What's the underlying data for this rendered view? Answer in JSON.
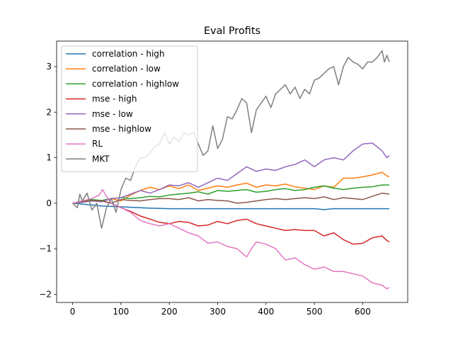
{
  "chart_data": {
    "type": "line",
    "title": "Eval Profits",
    "xlabel": "",
    "ylabel": "",
    "xlim": [
      -33,
      693
    ],
    "ylim": [
      -2.18,
      3.56
    ],
    "xticks": [
      0,
      100,
      200,
      300,
      400,
      500,
      600
    ],
    "yticks": [
      -2,
      -1,
      0,
      1,
      2,
      3
    ],
    "grid": false,
    "legend_position": "upper-left",
    "series": [
      {
        "name": "correlation - high",
        "color": "#1f77b4",
        "points": [
          [
            0,
            0
          ],
          [
            20,
            -0.02
          ],
          [
            40,
            -0.04
          ],
          [
            60,
            -0.06
          ],
          [
            80,
            -0.07
          ],
          [
            100,
            -0.08
          ],
          [
            120,
            -0.09
          ],
          [
            140,
            -0.1
          ],
          [
            160,
            -0.11
          ],
          [
            200,
            -0.12
          ],
          [
            250,
            -0.12
          ],
          [
            300,
            -0.12
          ],
          [
            350,
            -0.12
          ],
          [
            400,
            -0.12
          ],
          [
            450,
            -0.12
          ],
          [
            500,
            -0.12
          ],
          [
            520,
            -0.14
          ],
          [
            540,
            -0.12
          ],
          [
            580,
            -0.12
          ],
          [
            620,
            -0.12
          ],
          [
            655,
            -0.12
          ]
        ]
      },
      {
        "name": "correlation - low",
        "color": "#ff7f0e",
        "points": [
          [
            0,
            0
          ],
          [
            20,
            0.03
          ],
          [
            40,
            0.05
          ],
          [
            60,
            0.04
          ],
          [
            80,
            0.1
          ],
          [
            100,
            0.05
          ],
          [
            120,
            0.18
          ],
          [
            140,
            0.28
          ],
          [
            160,
            0.35
          ],
          [
            180,
            0.3
          ],
          [
            200,
            0.38
          ],
          [
            220,
            0.32
          ],
          [
            240,
            0.4
          ],
          [
            260,
            0.28
          ],
          [
            280,
            0.33
          ],
          [
            300,
            0.38
          ],
          [
            320,
            0.35
          ],
          [
            340,
            0.4
          ],
          [
            360,
            0.44
          ],
          [
            380,
            0.35
          ],
          [
            400,
            0.4
          ],
          [
            420,
            0.38
          ],
          [
            440,
            0.42
          ],
          [
            460,
            0.36
          ],
          [
            480,
            0.33
          ],
          [
            500,
            0.3
          ],
          [
            520,
            0.38
          ],
          [
            540,
            0.35
          ],
          [
            560,
            0.55
          ],
          [
            580,
            0.55
          ],
          [
            600,
            0.58
          ],
          [
            620,
            0.62
          ],
          [
            640,
            0.68
          ],
          [
            650,
            0.6
          ],
          [
            655,
            0.58
          ]
        ]
      },
      {
        "name": "correlation - highlow",
        "color": "#2ca02c",
        "points": [
          [
            0,
            0
          ],
          [
            20,
            0.04
          ],
          [
            40,
            0.08
          ],
          [
            60,
            0.06
          ],
          [
            80,
            0.1
          ],
          [
            100,
            0.12
          ],
          [
            120,
            0.1
          ],
          [
            140,
            0.12
          ],
          [
            160,
            0.15
          ],
          [
            180,
            0.14
          ],
          [
            200,
            0.18
          ],
          [
            220,
            0.2
          ],
          [
            240,
            0.22
          ],
          [
            260,
            0.25
          ],
          [
            280,
            0.2
          ],
          [
            300,
            0.28
          ],
          [
            320,
            0.26
          ],
          [
            340,
            0.28
          ],
          [
            360,
            0.3
          ],
          [
            380,
            0.24
          ],
          [
            400,
            0.26
          ],
          [
            420,
            0.3
          ],
          [
            440,
            0.32
          ],
          [
            460,
            0.28
          ],
          [
            480,
            0.3
          ],
          [
            500,
            0.35
          ],
          [
            520,
            0.38
          ],
          [
            540,
            0.33
          ],
          [
            560,
            0.3
          ],
          [
            580,
            0.33
          ],
          [
            600,
            0.35
          ],
          [
            620,
            0.36
          ],
          [
            640,
            0.4
          ],
          [
            655,
            0.4
          ]
        ]
      },
      {
        "name": "mse - high",
        "color": "#d62728",
        "points": [
          [
            0,
            0
          ],
          [
            20,
            0.03
          ],
          [
            40,
            0.05
          ],
          [
            60,
            0.05
          ],
          [
            80,
            0.0
          ],
          [
            100,
            -0.1
          ],
          [
            120,
            -0.18
          ],
          [
            140,
            -0.28
          ],
          [
            160,
            -0.35
          ],
          [
            180,
            -0.42
          ],
          [
            200,
            -0.45
          ],
          [
            220,
            -0.4
          ],
          [
            240,
            -0.42
          ],
          [
            260,
            -0.5
          ],
          [
            280,
            -0.48
          ],
          [
            300,
            -0.4
          ],
          [
            320,
            -0.45
          ],
          [
            340,
            -0.38
          ],
          [
            360,
            -0.35
          ],
          [
            380,
            -0.45
          ],
          [
            400,
            -0.5
          ],
          [
            420,
            -0.55
          ],
          [
            440,
            -0.6
          ],
          [
            460,
            -0.58
          ],
          [
            480,
            -0.6
          ],
          [
            500,
            -0.6
          ],
          [
            520,
            -0.72
          ],
          [
            540,
            -0.65
          ],
          [
            560,
            -0.8
          ],
          [
            580,
            -0.9
          ],
          [
            600,
            -0.88
          ],
          [
            620,
            -0.76
          ],
          [
            640,
            -0.72
          ],
          [
            650,
            -0.82
          ],
          [
            655,
            -0.85
          ]
        ]
      },
      {
        "name": "mse - low",
        "color": "#9467bd",
        "points": [
          [
            0,
            0
          ],
          [
            20,
            0.02
          ],
          [
            40,
            0.05
          ],
          [
            60,
            0.03
          ],
          [
            80,
            0.1
          ],
          [
            100,
            0.12
          ],
          [
            120,
            0.2
          ],
          [
            140,
            0.28
          ],
          [
            160,
            0.22
          ],
          [
            180,
            0.3
          ],
          [
            200,
            0.4
          ],
          [
            220,
            0.38
          ],
          [
            240,
            0.45
          ],
          [
            260,
            0.35
          ],
          [
            280,
            0.45
          ],
          [
            300,
            0.55
          ],
          [
            320,
            0.5
          ],
          [
            340,
            0.65
          ],
          [
            360,
            0.8
          ],
          [
            380,
            0.7
          ],
          [
            400,
            0.75
          ],
          [
            420,
            0.72
          ],
          [
            440,
            0.8
          ],
          [
            460,
            0.85
          ],
          [
            480,
            0.95
          ],
          [
            500,
            0.8
          ],
          [
            520,
            0.95
          ],
          [
            540,
            1.0
          ],
          [
            560,
            0.95
          ],
          [
            580,
            1.15
          ],
          [
            600,
            1.3
          ],
          [
            620,
            1.32
          ],
          [
            640,
            1.15
          ],
          [
            650,
            1.0
          ],
          [
            655,
            1.05
          ]
        ]
      },
      {
        "name": "mse - highlow",
        "color": "#8c564b",
        "points": [
          [
            0,
            0
          ],
          [
            20,
            0.03
          ],
          [
            40,
            0.06
          ],
          [
            60,
            0.05
          ],
          [
            80,
            0.0
          ],
          [
            100,
            0.08
          ],
          [
            120,
            0.06
          ],
          [
            140,
            0.05
          ],
          [
            160,
            0.08
          ],
          [
            180,
            0.1
          ],
          [
            200,
            0.1
          ],
          [
            220,
            0.08
          ],
          [
            240,
            0.12
          ],
          [
            260,
            0.05
          ],
          [
            280,
            0.08
          ],
          [
            300,
            0.06
          ],
          [
            320,
            0.05
          ],
          [
            340,
            0.0
          ],
          [
            360,
            0.02
          ],
          [
            380,
            0.05
          ],
          [
            400,
            0.08
          ],
          [
            420,
            0.1
          ],
          [
            440,
            0.08
          ],
          [
            460,
            0.1
          ],
          [
            480,
            0.12
          ],
          [
            500,
            0.1
          ],
          [
            520,
            0.14
          ],
          [
            540,
            0.08
          ],
          [
            560,
            0.12
          ],
          [
            580,
            0.1
          ],
          [
            600,
            0.08
          ],
          [
            620,
            0.15
          ],
          [
            640,
            0.22
          ],
          [
            655,
            0.2
          ]
        ]
      },
      {
        "name": "RL",
        "color": "#e377c2",
        "points": [
          [
            0,
            0
          ],
          [
            20,
            0.05
          ],
          [
            40,
            0.1
          ],
          [
            55,
            0.18
          ],
          [
            62,
            0.3
          ],
          [
            70,
            0.15
          ],
          [
            80,
            0.0
          ],
          [
            100,
            -0.1
          ],
          [
            120,
            -0.2
          ],
          [
            140,
            -0.38
          ],
          [
            160,
            -0.45
          ],
          [
            180,
            -0.5
          ],
          [
            200,
            -0.45
          ],
          [
            220,
            -0.55
          ],
          [
            240,
            -0.65
          ],
          [
            260,
            -0.72
          ],
          [
            280,
            -0.88
          ],
          [
            300,
            -0.85
          ],
          [
            320,
            -0.95
          ],
          [
            340,
            -1.0
          ],
          [
            360,
            -1.18
          ],
          [
            370,
            -1.0
          ],
          [
            380,
            -0.85
          ],
          [
            400,
            -0.9
          ],
          [
            420,
            -1.0
          ],
          [
            440,
            -1.25
          ],
          [
            460,
            -1.2
          ],
          [
            480,
            -1.35
          ],
          [
            500,
            -1.45
          ],
          [
            520,
            -1.4
          ],
          [
            540,
            -1.5
          ],
          [
            560,
            -1.5
          ],
          [
            580,
            -1.55
          ],
          [
            600,
            -1.6
          ],
          [
            620,
            -1.75
          ],
          [
            640,
            -1.8
          ],
          [
            650,
            -1.88
          ],
          [
            655,
            -1.85
          ]
        ]
      },
      {
        "name": "MKT",
        "color": "#7f7f7f",
        "points": [
          [
            0,
            0
          ],
          [
            10,
            -0.1
          ],
          [
            15,
            0.2
          ],
          [
            20,
            0.05
          ],
          [
            30,
            0.22
          ],
          [
            40,
            -0.15
          ],
          [
            50,
            0.0
          ],
          [
            60,
            -0.55
          ],
          [
            70,
            -0.1
          ],
          [
            80,
            0.1
          ],
          [
            90,
            -0.2
          ],
          [
            100,
            0.3
          ],
          [
            110,
            0.55
          ],
          [
            120,
            0.5
          ],
          [
            130,
            0.8
          ],
          [
            140,
            1.0
          ],
          [
            150,
            1.0
          ],
          [
            160,
            1.1
          ],
          [
            170,
            1.25
          ],
          [
            180,
            1.3
          ],
          [
            190,
            1.55
          ],
          [
            200,
            1.3
          ],
          [
            210,
            1.45
          ],
          [
            220,
            1.35
          ],
          [
            230,
            1.55
          ],
          [
            240,
            1.5
          ],
          [
            250,
            1.55
          ],
          [
            260,
            1.3
          ],
          [
            270,
            1.05
          ],
          [
            280,
            1.15
          ],
          [
            290,
            1.7
          ],
          [
            300,
            1.2
          ],
          [
            310,
            1.4
          ],
          [
            320,
            1.9
          ],
          [
            330,
            1.85
          ],
          [
            340,
            2.05
          ],
          [
            350,
            2.3
          ],
          [
            360,
            2.2
          ],
          [
            370,
            1.55
          ],
          [
            380,
            2.05
          ],
          [
            390,
            2.2
          ],
          [
            400,
            2.35
          ],
          [
            410,
            2.1
          ],
          [
            420,
            2.4
          ],
          [
            430,
            2.5
          ],
          [
            440,
            2.6
          ],
          [
            450,
            2.4
          ],
          [
            460,
            2.55
          ],
          [
            470,
            2.3
          ],
          [
            480,
            2.5
          ],
          [
            490,
            2.4
          ],
          [
            500,
            2.7
          ],
          [
            510,
            2.75
          ],
          [
            520,
            2.85
          ],
          [
            530,
            2.95
          ],
          [
            540,
            3.0
          ],
          [
            550,
            2.6
          ],
          [
            560,
            3.0
          ],
          [
            570,
            3.2
          ],
          [
            580,
            3.1
          ],
          [
            590,
            3.05
          ],
          [
            600,
            2.95
          ],
          [
            610,
            3.1
          ],
          [
            620,
            3.1
          ],
          [
            630,
            3.2
          ],
          [
            640,
            3.35
          ],
          [
            645,
            3.1
          ],
          [
            650,
            3.25
          ],
          [
            655,
            3.1
          ]
        ]
      }
    ]
  }
}
